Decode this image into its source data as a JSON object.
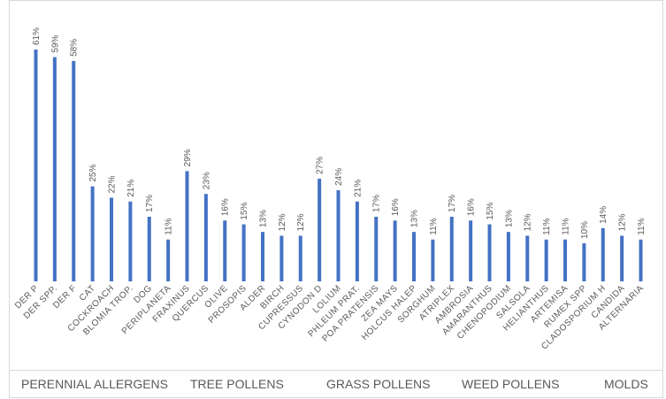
{
  "chart_data": {
    "type": "bar",
    "title": "",
    "xlabel": "",
    "ylabel": "",
    "ylim": [
      0,
      65
    ],
    "grid": false,
    "legend": "none",
    "bar_color": "#4472C4",
    "categories": [
      "DER P",
      "DER SPP.",
      "DER F",
      "CAT",
      "COCKROACH",
      "BLOMIA TROP.",
      "DOG",
      "PERIPLANETA",
      "FRAXINUS",
      "QUERCUS",
      "OLIVE",
      "PROSOPIS",
      "ALDER",
      "BIRCH",
      "CUPRESSUS",
      "CYNODON D",
      "LOLIUM",
      "PHLEUM PRAT.",
      "POA PRATENSIS",
      "ZEA MAYS",
      "HOLCUS HALEP",
      "SORGHUM",
      "ATRIPLEX",
      "AMBROSIA",
      "AMARANTHUS",
      "CHENOPODIUM",
      "SALSOLA",
      "HELIANTHUS",
      "ARTEMISA",
      "RUMEX SPP",
      "CLADOSPORIUM H",
      "CANDIDA",
      "ALTERNARIA"
    ],
    "values": [
      61,
      59,
      58,
      25,
      22,
      21,
      17,
      11,
      29,
      23,
      16,
      15,
      13,
      12,
      12,
      27,
      24,
      21,
      17,
      16,
      13,
      11,
      17,
      16,
      15,
      13,
      12,
      11,
      11,
      10,
      14,
      12,
      11
    ],
    "value_labels": [
      "61%",
      "59%",
      "58%",
      "25%",
      "22%",
      "21%",
      "17%",
      "11%",
      "29%",
      "23%",
      "16%",
      "15%",
      "13%",
      "12%",
      "12%",
      "27%",
      "24%",
      "21%",
      "17%",
      "16%",
      "13%",
      "11%",
      "17%",
      "16%",
      "15%",
      "13%",
      "12%",
      "11%",
      "11%",
      "10%",
      "14%",
      "12%",
      "11%"
    ],
    "groups": [
      {
        "label": "PERENNIAL ALLERGENS",
        "start": 0,
        "end": 7
      },
      {
        "label": "TREE POLLENS",
        "start": 8,
        "end": 14
      },
      {
        "label": "GRASS POLLENS",
        "start": 15,
        "end": 21
      },
      {
        "label": "WEED POLLENS",
        "start": 22,
        "end": 29
      },
      {
        "label": "MOLDS",
        "start": 30,
        "end": 32
      }
    ]
  }
}
